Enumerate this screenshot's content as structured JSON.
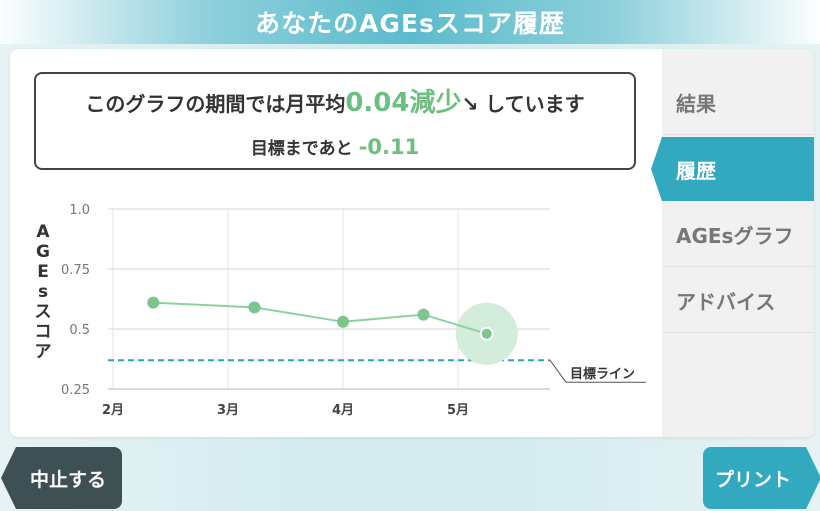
{
  "header": {
    "title": "あなたのAGEsスコア履歴"
  },
  "summary": {
    "prefix": "このグラフの期間では月平均",
    "value": "0.04減少",
    "arrow": "↘",
    "suffix": "しています",
    "goal_prefix": "目標まであと",
    "goal_value": "-0.11"
  },
  "side_menu": {
    "items": [
      {
        "label": "結果",
        "active": false
      },
      {
        "label": "履歴",
        "active": true
      },
      {
        "label": "AGEsグラフ",
        "active": false
      },
      {
        "label": "アドバイス",
        "active": false
      }
    ]
  },
  "buttons": {
    "stop": "中止する",
    "print": "プリント"
  },
  "chart_data": {
    "type": "line",
    "ylabel": "AGEsスコア",
    "x_ticks": [
      "2月",
      "3月",
      "4月",
      "5月"
    ],
    "y_ticks": [
      "1.0",
      "0.75",
      "0.5",
      "0.25"
    ],
    "ylim": [
      0.25,
      1.0
    ],
    "series": [
      {
        "x": [
          2.35,
          3.23,
          4.0,
          4.7,
          5.25
        ],
        "values": [
          0.61,
          0.59,
          0.53,
          0.56,
          0.48
        ]
      }
    ],
    "highlight_last": true,
    "target_line": {
      "value": 0.37,
      "label": "目標ライン"
    },
    "colors": {
      "line": "#8ed0a0",
      "point": "#7cc58f",
      "target": "#2aa4bd",
      "highlight": "#d3ecdb"
    }
  }
}
